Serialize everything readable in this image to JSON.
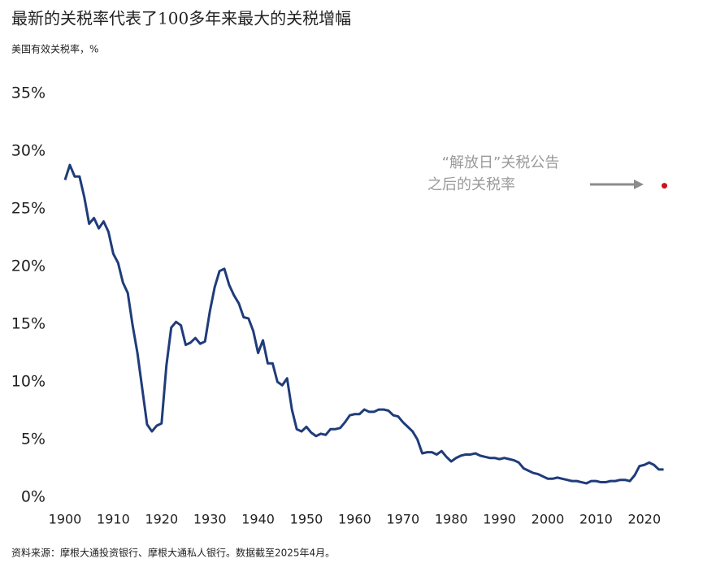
{
  "chart_data": {
    "type": "line",
    "title": "最新的关税率代表了100多年来最大的关税增幅",
    "subtitle": "美国有效关税率，%",
    "source": "资料来源：摩根大通投资银行、摩根大通私人银行。数据截至2025年4月。",
    "x": [
      1900,
      1901,
      1902,
      1903,
      1904,
      1905,
      1906,
      1907,
      1908,
      1909,
      1910,
      1911,
      1912,
      1913,
      1914,
      1915,
      1916,
      1917,
      1918,
      1919,
      1920,
      1921,
      1922,
      1923,
      1924,
      1925,
      1926,
      1927,
      1928,
      1929,
      1930,
      1931,
      1932,
      1933,
      1934,
      1935,
      1936,
      1937,
      1938,
      1939,
      1940,
      1941,
      1942,
      1943,
      1944,
      1945,
      1946,
      1947,
      1948,
      1949,
      1950,
      1951,
      1952,
      1953,
      1954,
      1955,
      1956,
      1957,
      1958,
      1959,
      1960,
      1961,
      1962,
      1963,
      1964,
      1965,
      1966,
      1967,
      1968,
      1969,
      1970,
      1971,
      1972,
      1973,
      1974,
      1975,
      1976,
      1977,
      1978,
      1979,
      1980,
      1981,
      1982,
      1983,
      1984,
      1985,
      1986,
      1987,
      1988,
      1989,
      1990,
      1991,
      1992,
      1993,
      1994,
      1995,
      1996,
      1997,
      1998,
      1999,
      2000,
      2001,
      2002,
      2003,
      2004,
      2005,
      2006,
      2007,
      2008,
      2009,
      2010,
      2011,
      2012,
      2013,
      2014,
      2015,
      2016,
      2017,
      2018,
      2019,
      2020,
      2021,
      2022,
      2023,
      2024
    ],
    "values": [
      27.5,
      28.8,
      27.8,
      27.8,
      26,
      23.7,
      24.2,
      23.3,
      23.9,
      23,
      21.1,
      20.3,
      18.6,
      17.7,
      14.9,
      12.5,
      9.4,
      6.3,
      5.7,
      6.2,
      6.4,
      11.4,
      14.7,
      15.2,
      14.9,
      13.2,
      13.4,
      13.8,
      13.3,
      13.5,
      16.1,
      18.2,
      19.6,
      19.8,
      18.4,
      17.5,
      16.8,
      15.6,
      15.5,
      14.4,
      12.5,
      13.6,
      11.6,
      11.6,
      10,
      9.7,
      10.3,
      7.6,
      5.9,
      5.7,
      6.1,
      5.6,
      5.3,
      5.5,
      5.4,
      5.9,
      5.9,
      6,
      6.5,
      7.1,
      7.2,
      7.2,
      7.6,
      7.4,
      7.4,
      7.6,
      7.6,
      7.5,
      7.1,
      7,
      6.5,
      6.1,
      5.7,
      5,
      3.8,
      3.9,
      3.9,
      3.7,
      4,
      3.5,
      3.1,
      3.4,
      3.6,
      3.7,
      3.7,
      3.8,
      3.6,
      3.5,
      3.4,
      3.4,
      3.3,
      3.4,
      3.3,
      3.2,
      3,
      2.5,
      2.3,
      2.1,
      2,
      1.8,
      1.6,
      1.6,
      1.7,
      1.6,
      1.5,
      1.4,
      1.4,
      1.3,
      1.2,
      1.4,
      1.4,
      1.3,
      1.3,
      1.4,
      1.4,
      1.5,
      1.5,
      1.4,
      1.9,
      2.7,
      2.8,
      3,
      2.8,
      2.4,
      2.4
    ],
    "color": "#1f3c7a",
    "annotation": {
      "text": [
        "“解放日”关税公告",
        "之后的关税率"
      ],
      "x": 2025,
      "value": 27,
      "color": "#d0121b"
    },
    "xlim": [
      1900,
      2025
    ],
    "xticks": [
      1900,
      1910,
      1920,
      1930,
      1940,
      1950,
      1960,
      1970,
      1980,
      1990,
      2000,
      2010,
      2020
    ],
    "ylim": [
      0,
      35
    ],
    "yticks": [
      {
        "value": 0,
        "label": "0%"
      },
      {
        "value": 5,
        "label": "5%"
      },
      {
        "value": 10,
        "label": "10%"
      },
      {
        "value": 15,
        "label": "15%"
      },
      {
        "value": 20,
        "label": "20%"
      },
      {
        "value": 25,
        "label": "25%"
      },
      {
        "value": 30,
        "label": "30%"
      },
      {
        "value": 35,
        "label": "35%"
      }
    ],
    "grid": false
  }
}
